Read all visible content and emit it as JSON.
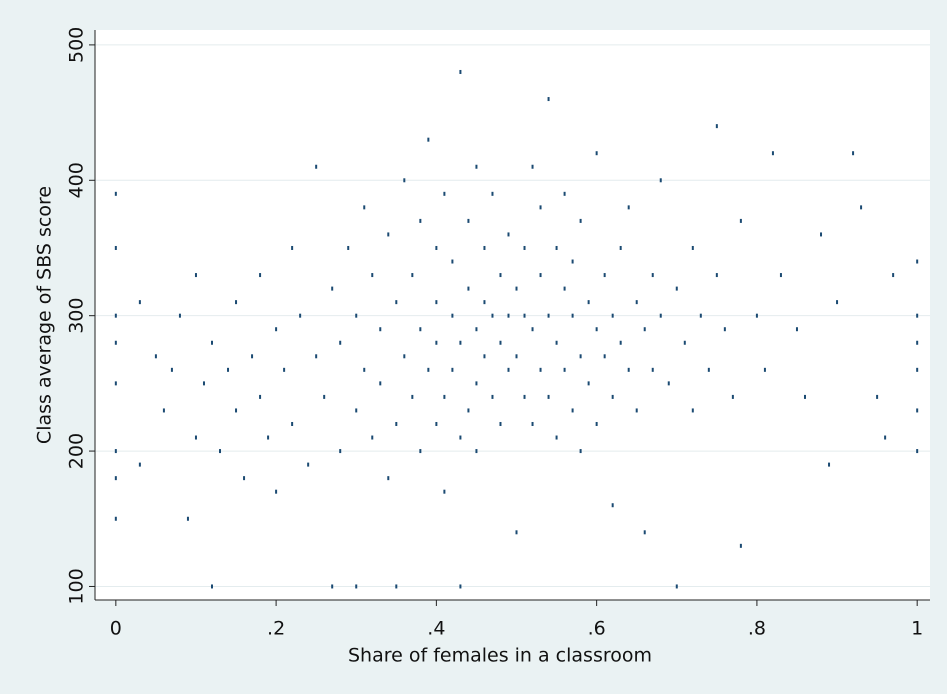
{
  "chart_data": {
    "type": "scatter",
    "x_label": "Share of females in a classroom",
    "y_label": "Class average of SBS score",
    "color": "#1b4a72",
    "grid": true,
    "xlim": [
      -0.026,
      1.016
    ],
    "ylim": [
      90,
      511
    ],
    "xticks": [
      0,
      {
        "value": 0.2,
        "label": ".2"
      },
      {
        "value": 0.4,
        "label": ".4"
      },
      {
        "value": 0.6,
        "label": ".6"
      },
      {
        "value": 0.8,
        "label": ".8"
      },
      1
    ],
    "yticks": [
      100,
      200,
      300,
      400,
      500
    ],
    "x": [
      0,
      0,
      0,
      0,
      0,
      0,
      0,
      0,
      0.03,
      0.03,
      0.05,
      0.06,
      0.07,
      0.08,
      0.09,
      0.1,
      0.1,
      0.11,
      0.12,
      0.12,
      0.13,
      0.14,
      0.15,
      0.15,
      0.16,
      0.17,
      0.18,
      0.18,
      0.19,
      0.2,
      0.2,
      0.21,
      0.22,
      0.22,
      0.23,
      0.24,
      0.25,
      0.25,
      0.26,
      0.27,
      0.27,
      0.28,
      0.28,
      0.29,
      0.3,
      0.3,
      0.3,
      0.31,
      0.31,
      0.32,
      0.32,
      0.33,
      0.33,
      0.34,
      0.34,
      0.35,
      0.35,
      0.35,
      0.36,
      0.36,
      0.37,
      0.37,
      0.38,
      0.38,
      0.38,
      0.39,
      0.39,
      0.4,
      0.4,
      0.4,
      0.4,
      0.41,
      0.41,
      0.41,
      0.42,
      0.42,
      0.42,
      0.43,
      0.43,
      0.43,
      0.43,
      0.44,
      0.44,
      0.44,
      0.45,
      0.45,
      0.45,
      0.45,
      0.46,
      0.46,
      0.46,
      0.47,
      0.47,
      0.47,
      0.48,
      0.48,
      0.48,
      0.49,
      0.49,
      0.49,
      0.5,
      0.5,
      0.5,
      0.51,
      0.51,
      0.51,
      0.52,
      0.52,
      0.52,
      0.53,
      0.53,
      0.53,
      0.54,
      0.54,
      0.54,
      0.55,
      0.55,
      0.55,
      0.56,
      0.56,
      0.56,
      0.57,
      0.57,
      0.57,
      0.58,
      0.58,
      0.58,
      0.59,
      0.59,
      0.6,
      0.6,
      0.6,
      0.61,
      0.61,
      0.62,
      0.62,
      0.62,
      0.63,
      0.63,
      0.64,
      0.64,
      0.65,
      0.65,
      0.66,
      0.66,
      0.67,
      0.67,
      0.68,
      0.68,
      0.69,
      0.7,
      0.7,
      0.71,
      0.72,
      0.72,
      0.73,
      0.74,
      0.75,
      0.75,
      0.76,
      0.77,
      0.78,
      0.78,
      0.8,
      0.81,
      0.82,
      0.83,
      0.85,
      0.86,
      0.88,
      0.89,
      0.9,
      0.92,
      0.93,
      0.95,
      0.96,
      0.97,
      1,
      1,
      1,
      1,
      1,
      1
    ],
    "values": [
      150,
      200,
      250,
      300,
      350,
      390,
      180,
      280,
      190,
      310,
      270,
      230,
      260,
      300,
      150,
      210,
      330,
      250,
      280,
      100,
      200,
      260,
      310,
      230,
      180,
      270,
      240,
      330,
      210,
      290,
      170,
      260,
      350,
      220,
      300,
      190,
      270,
      410,
      240,
      320,
      100,
      200,
      280,
      350,
      230,
      300,
      100,
      260,
      380,
      210,
      330,
      290,
      250,
      180,
      360,
      220,
      310,
      100,
      270,
      400,
      240,
      330,
      200,
      290,
      370,
      260,
      430,
      220,
      310,
      350,
      280,
      240,
      390,
      170,
      300,
      260,
      340,
      210,
      480,
      100,
      280,
      320,
      230,
      370,
      290,
      250,
      410,
      200,
      310,
      270,
      350,
      240,
      300,
      390,
      220,
      330,
      280,
      260,
      360,
      300,
      140,
      320,
      270,
      240,
      350,
      300,
      290,
      410,
      220,
      330,
      260,
      380,
      300,
      240,
      460,
      280,
      350,
      210,
      320,
      260,
      390,
      300,
      230,
      340,
      270,
      370,
      200,
      310,
      250,
      290,
      420,
      220,
      330,
      270,
      300,
      240,
      160,
      350,
      280,
      260,
      380,
      310,
      230,
      290,
      140,
      330,
      260,
      300,
      400,
      250,
      320,
      100,
      280,
      350,
      230,
      300,
      260,
      440,
      330,
      290,
      240,
      130,
      370,
      300,
      260,
      420,
      330,
      290,
      240,
      360,
      190,
      310,
      420,
      380,
      240,
      210,
      330,
      340,
      300,
      260,
      230,
      200,
      280
    ]
  }
}
